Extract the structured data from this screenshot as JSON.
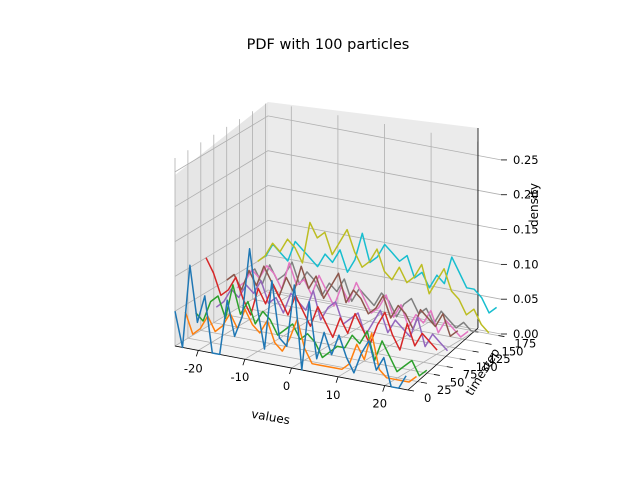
{
  "chart_data": {
    "type": "line",
    "projection": "3d",
    "title": "PDF with 100 particles",
    "xlabel": "values",
    "ylabel": "timestep",
    "zlabel": "density",
    "xlim": [
      -25,
      25
    ],
    "ylim": [
      0,
      180
    ],
    "zlim": [
      0,
      0.27
    ],
    "x_ticks": [
      "-20",
      "-10",
      "0",
      "10",
      "20"
    ],
    "y_ticks": [
      "0",
      "25",
      "50",
      "75",
      "100",
      "125",
      "150",
      "175"
    ],
    "z_ticks": [
      "0.00",
      "0.05",
      "0.10",
      "0.15",
      "0.20",
      "0.25"
    ],
    "grid": true,
    "x": [
      -25,
      -23.4,
      -21.8,
      -20.2,
      -18.6,
      -17,
      -15.4,
      -13.8,
      -12.2,
      -10.6,
      -9,
      -7.4,
      -5.8,
      -4.2,
      -2.6,
      -1,
      0.6,
      2.2,
      3.8,
      5.4,
      7,
      8.6,
      10.2,
      11.8,
      13.4,
      15,
      16.6,
      18.2,
      19.8,
      21.4,
      23,
      24.6
    ],
    "series": [
      {
        "color": "#1f77b4",
        "timestep": 0,
        "values": [
          0.05,
          0.0,
          0.12,
          0.04,
          0.08,
          0.0,
          0.0,
          0.08,
          0.03,
          0.06,
          0.16,
          0.08,
          0.02,
          0.12,
          0.04,
          0.03,
          0.12,
          0.0,
          0.1,
          0.02,
          0.06,
          0.03,
          0.06,
          0.03,
          0.01,
          0.04,
          0.06,
          0.02,
          0.04,
          0.0,
          0.0,
          0.02
        ]
      },
      {
        "color": "#ff7f0e",
        "timestep": 20,
        "values": [
          0.04,
          0.01,
          0.02,
          0.04,
          0.02,
          0.03,
          0.05,
          0.03,
          0.06,
          0.04,
          0.03,
          0.05,
          0.02,
          0.01,
          0.03,
          0.06,
          0.02,
          0.0,
          0.0,
          0.0,
          0.0,
          0.0,
          0.01,
          0.04,
          0.02,
          0.06,
          0.01,
          0.0,
          0.0,
          0.0,
          0.0,
          0.01
        ]
      },
      {
        "color": "#2ca02c",
        "timestep": 40,
        "values": [
          0.03,
          0.02,
          0.05,
          0.06,
          0.03,
          0.08,
          0.04,
          0.06,
          0.03,
          0.05,
          0.04,
          0.02,
          0.03,
          0.04,
          0.02,
          0.03,
          0.02,
          0.0,
          0.01,
          0.02,
          0.02,
          0.04,
          0.03,
          0.05,
          0.01,
          0.04,
          0.02,
          0.0,
          0.01,
          0.02,
          0.0,
          0.01
        ]
      },
      {
        "color": "#d62728",
        "timestep": 60,
        "values": [
          0.1,
          0.08,
          0.05,
          0.06,
          0.08,
          0.05,
          0.03,
          0.07,
          0.05,
          0.08,
          0.06,
          0.04,
          0.07,
          0.05,
          0.03,
          0.06,
          0.04,
          0.02,
          0.05,
          0.03,
          0.06,
          0.04,
          0.02,
          0.05,
          0.07,
          0.04,
          0.02,
          0.06,
          0.03,
          0.05,
          0.04,
          0.03
        ]
      },
      {
        "color": "#9467bd",
        "timestep": 80,
        "values": [
          0.02,
          0.03,
          0.05,
          0.04,
          0.06,
          0.05,
          0.07,
          0.04,
          0.05,
          0.03,
          0.06,
          0.05,
          0.04,
          0.07,
          0.03,
          0.05,
          0.06,
          0.03,
          0.04,
          0.05,
          0.02,
          0.04,
          0.06,
          0.03,
          0.05,
          0.04,
          0.03,
          0.06,
          0.02,
          0.04,
          0.03,
          0.02
        ]
      },
      {
        "color": "#8c564b",
        "timestep": 100,
        "values": [
          0.05,
          0.06,
          0.04,
          0.07,
          0.05,
          0.08,
          0.06,
          0.04,
          0.07,
          0.05,
          0.09,
          0.06,
          0.08,
          0.05,
          0.07,
          0.09,
          0.05,
          0.07,
          0.06,
          0.04,
          0.05,
          0.07,
          0.04,
          0.06,
          0.05,
          0.03,
          0.06,
          0.05,
          0.04,
          0.06,
          0.03,
          0.04
        ]
      },
      {
        "color": "#e377c2",
        "timestep": 120,
        "values": [
          0.03,
          0.04,
          0.06,
          0.05,
          0.07,
          0.06,
          0.04,
          0.08,
          0.05,
          0.06,
          0.04,
          0.07,
          0.05,
          0.03,
          0.06,
          0.04,
          0.07,
          0.05,
          0.03,
          0.04,
          0.06,
          0.03,
          0.05,
          0.02,
          0.04,
          0.03,
          0.05,
          0.02,
          0.04,
          0.03,
          0.02,
          0.03
        ]
      },
      {
        "color": "#7f7f7f",
        "timestep": 140,
        "values": [
          0.04,
          0.05,
          0.03,
          0.06,
          0.04,
          0.05,
          0.07,
          0.04,
          0.06,
          0.05,
          0.03,
          0.05,
          0.04,
          0.06,
          0.03,
          0.05,
          0.04,
          0.03,
          0.05,
          0.04,
          0.02,
          0.04,
          0.05,
          0.03,
          0.04,
          0.02,
          0.04,
          0.03,
          0.02,
          0.03,
          0.02,
          0.02
        ]
      },
      {
        "color": "#bcbd22",
        "timestep": 160,
        "values": [
          0.05,
          0.06,
          0.08,
          0.07,
          0.09,
          0.08,
          0.06,
          0.12,
          0.1,
          0.11,
          0.08,
          0.1,
          0.12,
          0.09,
          0.07,
          0.08,
          0.1,
          0.07,
          0.06,
          0.08,
          0.06,
          0.07,
          0.09,
          0.05,
          0.07,
          0.09,
          0.06,
          0.05,
          0.03,
          0.04,
          0.02,
          0.01
        ]
      },
      {
        "color": "#17becf",
        "timestep": 175,
        "values": [
          0.05,
          0.07,
          0.06,
          0.05,
          0.08,
          0.07,
          0.06,
          0.05,
          0.07,
          0.06,
          0.08,
          0.05,
          0.07,
          0.11,
          0.07,
          0.08,
          0.1,
          0.09,
          0.08,
          0.09,
          0.06,
          0.07,
          0.05,
          0.07,
          0.06,
          0.1,
          0.08,
          0.06,
          0.06,
          0.05,
          0.03,
          0.04
        ]
      }
    ]
  }
}
